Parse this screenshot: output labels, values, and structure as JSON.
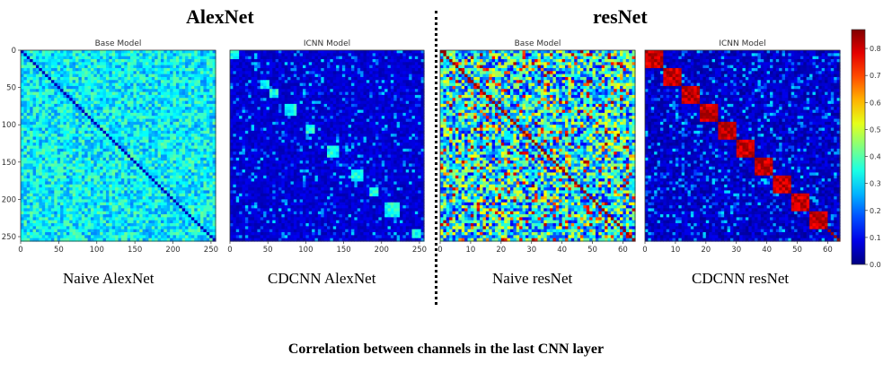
{
  "headings": {
    "left": "AlexNet",
    "right": "resNet"
  },
  "captions": {
    "naive_alexnet": "Naive AlexNet",
    "cdcnn_alexnet": "CDCNN AlexNet",
    "naive_resnet": "Naive resNet",
    "cdcnn_resnet": "CDCNN resNet",
    "bottom": "Correlation between channels in the last CNN layer"
  },
  "chart_data": [
    {
      "type": "heatmap",
      "title": "Base Model",
      "matrix_size": 256,
      "xticks": [
        "0",
        "50",
        "100",
        "150",
        "200",
        "250"
      ],
      "yticks": [
        "0",
        "50",
        "100",
        "150",
        "200",
        "250"
      ],
      "diagonal_value": 0.05,
      "off_diagonal_typical": 0.3,
      "blocks": []
    },
    {
      "type": "heatmap",
      "title": "ICNN Model",
      "matrix_size": 256,
      "xticks": [
        "0",
        "50",
        "100",
        "150",
        "200",
        "250"
      ],
      "yticks": [],
      "off_diagonal_typical": 0.1,
      "blocks": [
        {
          "start": 0,
          "end": 12
        },
        {
          "start": 40,
          "end": 52
        },
        {
          "start": 52,
          "end": 64
        },
        {
          "start": 75,
          "end": 88
        },
        {
          "start": 100,
          "end": 110
        },
        {
          "start": 128,
          "end": 142
        },
        {
          "start": 160,
          "end": 176
        },
        {
          "start": 185,
          "end": 196
        },
        {
          "start": 205,
          "end": 224
        },
        {
          "start": 240,
          "end": 252
        }
      ]
    },
    {
      "type": "heatmap",
      "title": "Base Model",
      "matrix_size": 64,
      "xticks": [
        "0",
        "10",
        "20",
        "30",
        "40",
        "50",
        "60"
      ],
      "yticks": [],
      "off_diagonal_typical": 0.3
    },
    {
      "type": "heatmap",
      "title": "ICNN Model",
      "matrix_size": 64,
      "xticks": [
        "0",
        "10",
        "20",
        "30",
        "40",
        "50",
        "60"
      ],
      "yticks": [],
      "off_diagonal_typical": 0.1,
      "blocks": [
        {
          "start": 0,
          "end": 6
        },
        {
          "start": 6,
          "end": 12
        },
        {
          "start": 12,
          "end": 18
        },
        {
          "start": 18,
          "end": 24
        },
        {
          "start": 24,
          "end": 30
        },
        {
          "start": 30,
          "end": 36
        },
        {
          "start": 36,
          "end": 42
        },
        {
          "start": 42,
          "end": 48
        },
        {
          "start": 48,
          "end": 54
        },
        {
          "start": 54,
          "end": 60
        }
      ]
    }
  ],
  "colorbar": {
    "range": [
      0.0,
      0.87
    ],
    "ticks": [
      "0.0",
      "0.1",
      "0.2",
      "0.3",
      "0.4",
      "0.5",
      "0.6",
      "0.7",
      "0.8"
    ]
  }
}
